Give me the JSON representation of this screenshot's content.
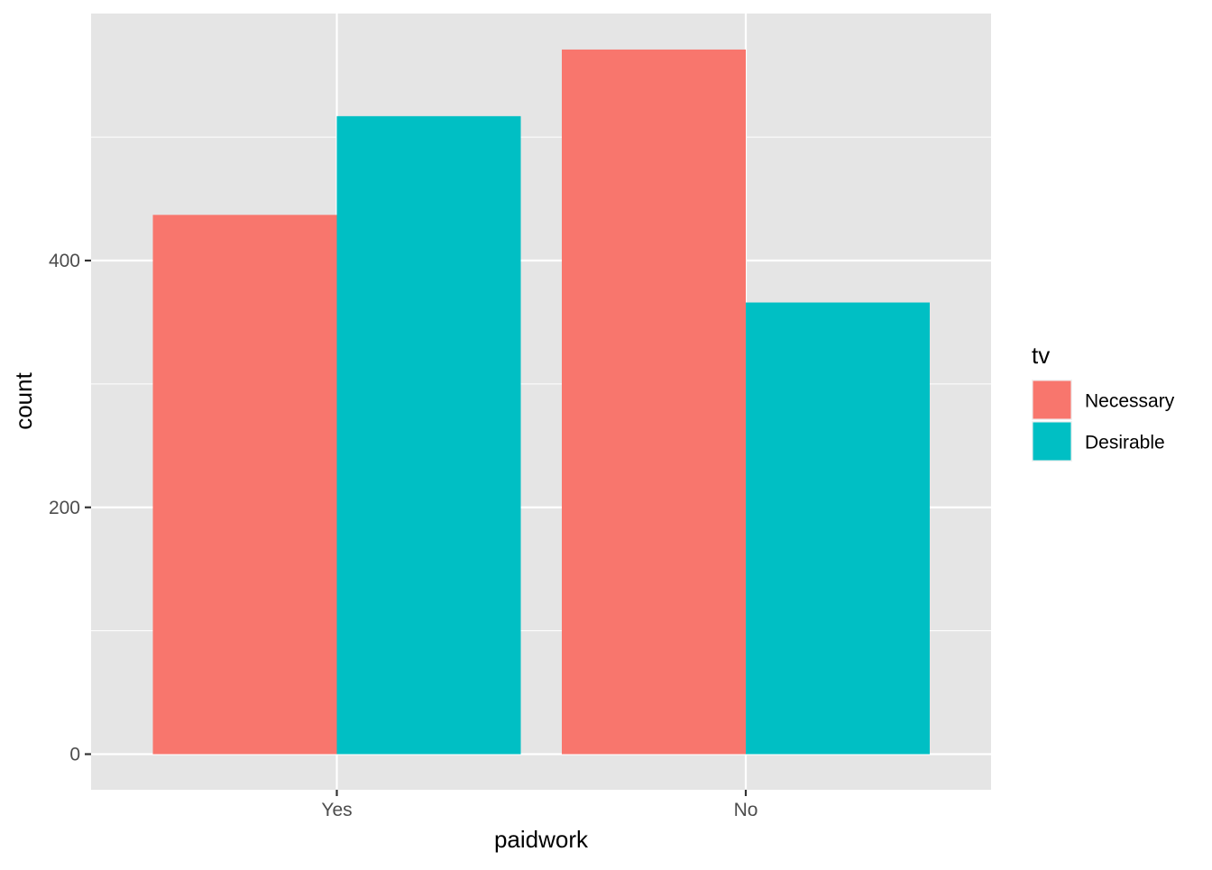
{
  "chart_data": {
    "type": "bar",
    "categories": [
      "Yes",
      "No"
    ],
    "series": [
      {
        "name": "Necessary",
        "color": "#F8766D",
        "values": [
          437,
          571
        ]
      },
      {
        "name": "Desirable",
        "color": "#00BFC4",
        "values": [
          517,
          366
        ]
      }
    ],
    "xlabel": "paidwork",
    "ylabel": "count",
    "legend_title": "tv",
    "legend_position": "right",
    "ylim": [
      -28,
      600
    ],
    "yticks": [
      0,
      200,
      400
    ],
    "ytick_labels": [
      "0",
      "200",
      "400"
    ],
    "grid": true,
    "panel_background": "#EBEBEB",
    "grid_color": "#FFFFFF"
  }
}
